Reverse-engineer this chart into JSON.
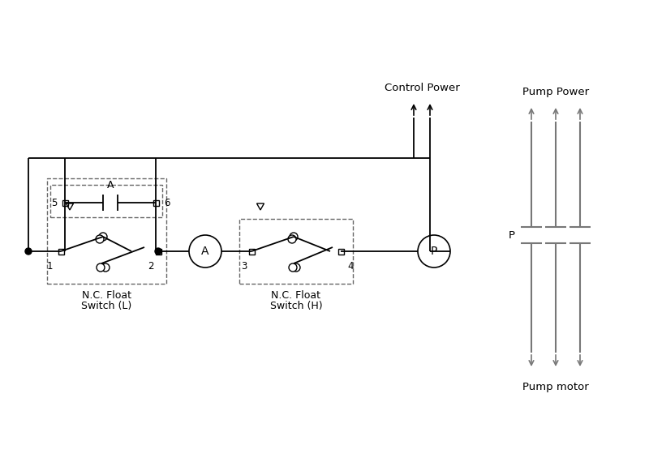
{
  "bg_color": "#ffffff",
  "line_color": "#000000",
  "dashed_color": "#666666",
  "control_power_label": "Control Power",
  "pump_power_label": "Pump Power",
  "pump_motor_label": "Pump motor",
  "relay_label": "A",
  "pump_contactor_label": "P"
}
